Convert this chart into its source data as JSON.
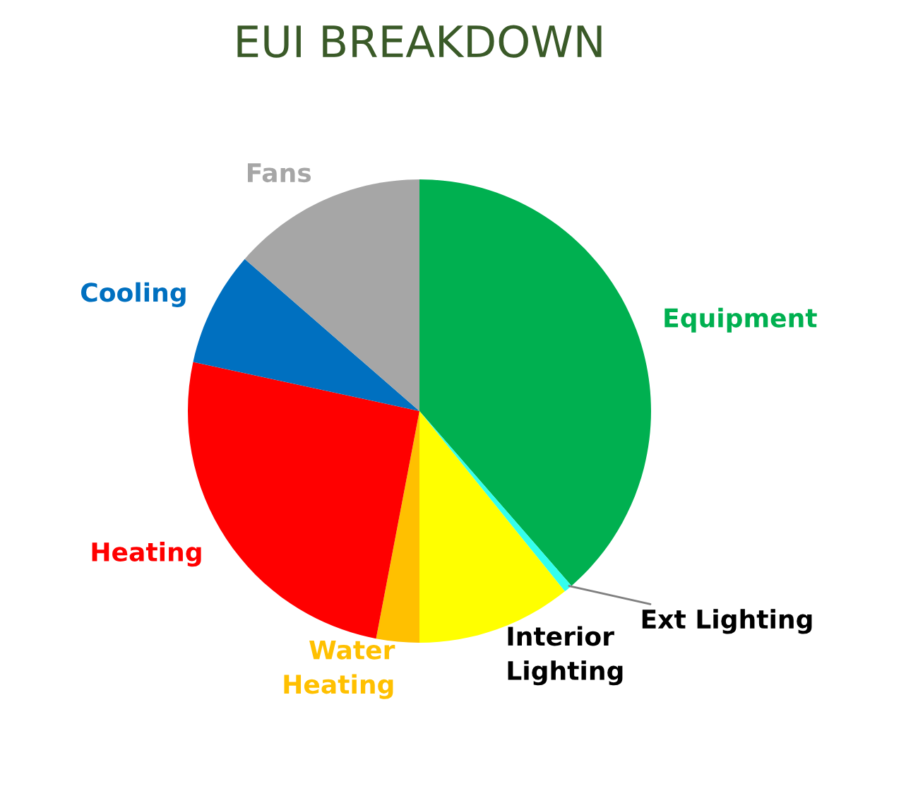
{
  "chart_data": {
    "type": "pie",
    "title": "EUI BREAKDOWN",
    "categories": [
      "Equipment",
      "Ext Lighting",
      "Interior Lighting",
      "Water Heating",
      "Heating",
      "Cooling",
      "Fans"
    ],
    "values": [
      38.6,
      0.6,
      10.8,
      3.0,
      25.4,
      8.0,
      13.6
    ],
    "colors": [
      "#00b050",
      "#33ffee",
      "#ffff00",
      "#ffc000",
      "#ff0000",
      "#0070c0",
      "#a6a6a6"
    ]
  }
}
